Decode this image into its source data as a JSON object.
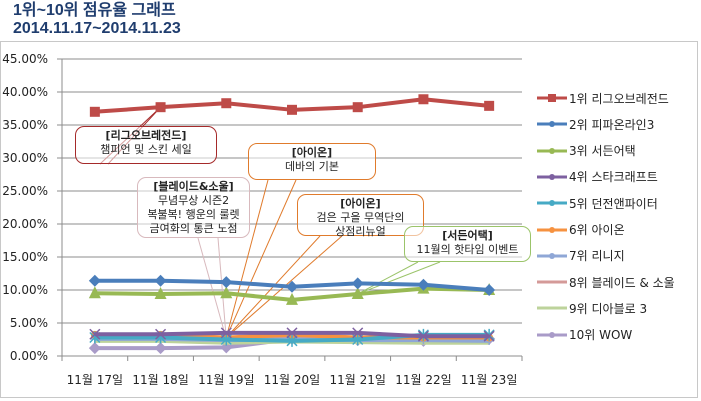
{
  "header": {
    "title_line1": "1위~10위 점유율 그래프",
    "title_line2": "2014.11.17~2014.11.23"
  },
  "chart_data": {
    "type": "line",
    "title": "1위~10위 점유율 그래프",
    "subtitle": "2014.11.17~2014.11.23",
    "xlabel": "",
    "ylabel": "",
    "ylim": [
      0,
      45
    ],
    "yticks": [
      "0.00%",
      "5.00%",
      "10.00%",
      "15.00%",
      "20.00%",
      "25.00%",
      "30.00%",
      "35.00%",
      "40.00%",
      "45.00%"
    ],
    "grid": true,
    "legend_position": "right",
    "categories": [
      "11월 17일",
      "11월 18일",
      "11월 19일",
      "11월 20일",
      "11월 21일",
      "11월 22일",
      "11월 23일"
    ],
    "series": [
      {
        "name": "1위 리그오브레전드",
        "color": "#be4b48",
        "marker": "square",
        "values": [
          37.0,
          37.7,
          38.3,
          37.3,
          37.7,
          38.9,
          37.9
        ]
      },
      {
        "name": "2위 피파온라인3",
        "color": "#4a7ebb",
        "marker": "diamond",
        "values": [
          11.4,
          11.4,
          11.2,
          10.5,
          11.0,
          10.8,
          10.0
        ]
      },
      {
        "name": "3위 서든어택",
        "color": "#98b954",
        "marker": "triangle",
        "values": [
          9.5,
          9.4,
          9.5,
          8.5,
          9.4,
          10.2,
          10.0
        ]
      },
      {
        "name": "4위 스타크래프트",
        "color": "#7d60a0",
        "marker": "x",
        "values": [
          3.3,
          3.3,
          3.5,
          3.5,
          3.5,
          3.0,
          3.0
        ]
      },
      {
        "name": "5위 던전앤파이터",
        "color": "#46aac5",
        "marker": "star",
        "values": [
          2.8,
          2.8,
          2.5,
          2.3,
          2.5,
          3.2,
          3.2
        ]
      },
      {
        "name": "6위 아이온",
        "color": "#f69240",
        "marker": "circle",
        "values": [
          3.2,
          3.2,
          2.8,
          3.2,
          2.8,
          2.8,
          2.8
        ]
      },
      {
        "name": "7위 리니지",
        "color": "#8fa7d6",
        "marker": "plus",
        "values": [
          2.6,
          2.6,
          2.4,
          2.5,
          2.4,
          2.4,
          2.3
        ]
      },
      {
        "name": "8위 블레이드 & 소울",
        "color": "#d49a98",
        "marker": "none",
        "values": [
          2.9,
          2.9,
          2.6,
          2.6,
          2.6,
          2.6,
          2.6
        ]
      },
      {
        "name": "9위 디아블로 3",
        "color": "#bdd39b",
        "marker": "none",
        "values": [
          2.3,
          2.3,
          2.0,
          2.2,
          2.1,
          2.0,
          2.0
        ]
      },
      {
        "name": "10위 WOW",
        "color": "#a99bc8",
        "marker": "diamond",
        "values": [
          1.2,
          1.2,
          1.3,
          2.6,
          2.4,
          2.3,
          2.6
        ]
      }
    ],
    "annotations": [
      {
        "title": "[리그오브레전드]",
        "lines": [
          "챔피언 및 스킨 세일"
        ],
        "color": "#a52a2a",
        "series": 0,
        "points": [
          1
        ]
      },
      {
        "title": "[블레이드&소울]",
        "lines": [
          "무념무상 시즌2",
          "복불복! 행운의 룰렛",
          "금여화의 통큰 노점"
        ],
        "color": "#d8b9bd",
        "series": 7,
        "points": [
          2
        ]
      },
      {
        "title": "[아이온]",
        "lines": [
          "데바의 기본"
        ],
        "color": "#e07b2c",
        "series": 5,
        "points": [
          2
        ]
      },
      {
        "title": "[아이온]",
        "lines": [
          "검은 구을 무역단의",
          "상점리뉴얼"
        ],
        "color": "#e07b2c",
        "series": 5,
        "points": [
          2
        ]
      },
      {
        "title": "[서든어택]",
        "lines": [
          "11월의 핫타임 이벤트"
        ],
        "color": "#9bc46a",
        "series": 2,
        "points": [
          4
        ]
      }
    ]
  }
}
